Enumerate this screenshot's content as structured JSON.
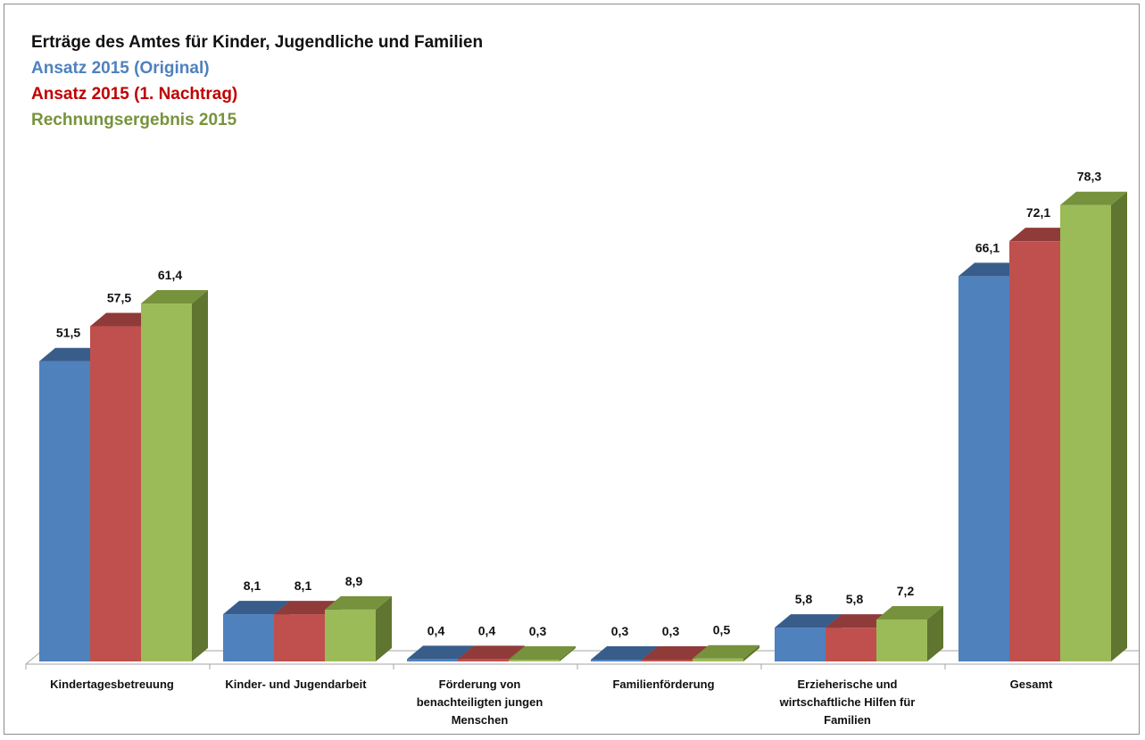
{
  "chart_data": {
    "type": "bar",
    "title": "Erträge des Amtes für Kinder, Jugendliche und Familien",
    "categories": [
      [
        "Kindertagesbetreuung"
      ],
      [
        "Kinder- und Jugendarbeit"
      ],
      [
        "Förderung von",
        "benachteiligten jungen",
        "Menschen"
      ],
      [
        "Familienförderung"
      ],
      [
        "Erzieherische und",
        "wirtschaftliche Hilfen für",
        "Familien"
      ],
      [
        "Gesamt"
      ]
    ],
    "series": [
      {
        "name": "Ansatz 2015 (Original)",
        "color": "#4f81bd",
        "dark": "#385d8a",
        "side": "#2f4f77",
        "values": [
          51.5,
          8.1,
          0.4,
          0.3,
          5.8,
          66.1
        ],
        "labels": [
          "51,5",
          "8,1",
          "0,4",
          "0,3",
          "5,8",
          "66,1"
        ]
      },
      {
        "name": "Ansatz 2015 (1. Nachtrag)",
        "color": "#c0504d",
        "dark": "#8f3b39",
        "side": "#7f3230",
        "values": [
          57.5,
          8.1,
          0.4,
          0.3,
          5.8,
          72.1
        ],
        "labels": [
          "57,5",
          "8,1",
          "0,4",
          "0,3",
          "5,8",
          "72,1"
        ]
      },
      {
        "name": "Rechnungsergebnis 2015",
        "color": "#9bbb59",
        "dark": "#76923c",
        "side": "#5f7530",
        "values": [
          61.4,
          8.9,
          0.3,
          0.5,
          7.2,
          78.3
        ],
        "labels": [
          "61,4",
          "8,9",
          "0,3",
          "0,5",
          "7,2",
          "78,3"
        ]
      }
    ],
    "legend_position": "top-left",
    "legend_text_colors": [
      "#4f81bd",
      "#c00000",
      "#77933c"
    ],
    "grid": false,
    "ylim": [
      0,
      80
    ],
    "style": "3d-clustered-column"
  }
}
